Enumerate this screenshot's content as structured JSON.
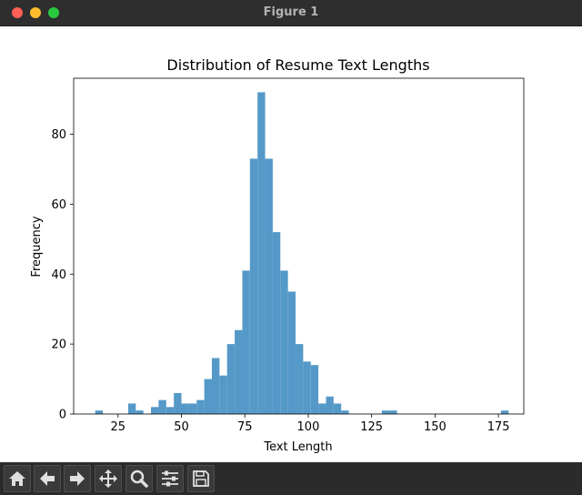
{
  "window": {
    "title": "Figure 1"
  },
  "toolbar": {
    "tools": [
      {
        "name": "home",
        "icon": "home-icon"
      },
      {
        "name": "back",
        "icon": "arrow-left-icon"
      },
      {
        "name": "forward",
        "icon": "arrow-right-icon"
      },
      {
        "name": "pan",
        "icon": "move-icon"
      },
      {
        "name": "zoom",
        "icon": "zoom-icon"
      },
      {
        "name": "subplots",
        "icon": "sliders-icon"
      },
      {
        "name": "save",
        "icon": "save-icon"
      }
    ]
  },
  "chart_data": {
    "type": "bar",
    "title": "Distribution of Resume Text Lengths",
    "xlabel": "Text Length",
    "ylabel": "Frequency",
    "xlim": [
      7.5,
      185
    ],
    "ylim": [
      0,
      96
    ],
    "xticks": [
      25,
      50,
      75,
      100,
      125,
      150,
      175
    ],
    "yticks": [
      0,
      20,
      40,
      60,
      80
    ],
    "bar_color": "#5599c8",
    "bins": [
      {
        "x0": 16,
        "x1": 19,
        "count": 1
      },
      {
        "x0": 29,
        "x1": 32,
        "count": 3
      },
      {
        "x0": 32,
        "x1": 35,
        "count": 1
      },
      {
        "x0": 38,
        "x1": 41,
        "count": 2
      },
      {
        "x0": 41,
        "x1": 44,
        "count": 4
      },
      {
        "x0": 44,
        "x1": 47,
        "count": 2
      },
      {
        "x0": 47,
        "x1": 50,
        "count": 6
      },
      {
        "x0": 50,
        "x1": 53,
        "count": 3
      },
      {
        "x0": 53,
        "x1": 56,
        "count": 3
      },
      {
        "x0": 56,
        "x1": 59,
        "count": 4
      },
      {
        "x0": 59,
        "x1": 62,
        "count": 10
      },
      {
        "x0": 62,
        "x1": 65,
        "count": 16
      },
      {
        "x0": 65,
        "x1": 68,
        "count": 11
      },
      {
        "x0": 68,
        "x1": 71,
        "count": 20
      },
      {
        "x0": 71,
        "x1": 74,
        "count": 24
      },
      {
        "x0": 74,
        "x1": 77,
        "count": 41
      },
      {
        "x0": 77,
        "x1": 80,
        "count": 73
      },
      {
        "x0": 80,
        "x1": 83,
        "count": 92
      },
      {
        "x0": 83,
        "x1": 86,
        "count": 73
      },
      {
        "x0": 86,
        "x1": 89,
        "count": 52
      },
      {
        "x0": 89,
        "x1": 92,
        "count": 41
      },
      {
        "x0": 92,
        "x1": 95,
        "count": 35
      },
      {
        "x0": 95,
        "x1": 98,
        "count": 20
      },
      {
        "x0": 98,
        "x1": 101,
        "count": 15
      },
      {
        "x0": 101,
        "x1": 104,
        "count": 14
      },
      {
        "x0": 104,
        "x1": 107,
        "count": 3
      },
      {
        "x0": 107,
        "x1": 110,
        "count": 5
      },
      {
        "x0": 110,
        "x1": 113,
        "count": 3
      },
      {
        "x0": 113,
        "x1": 116,
        "count": 1
      },
      {
        "x0": 129,
        "x1": 132,
        "count": 1
      },
      {
        "x0": 132,
        "x1": 135,
        "count": 1
      },
      {
        "x0": 176,
        "x1": 179,
        "count": 1
      }
    ]
  }
}
